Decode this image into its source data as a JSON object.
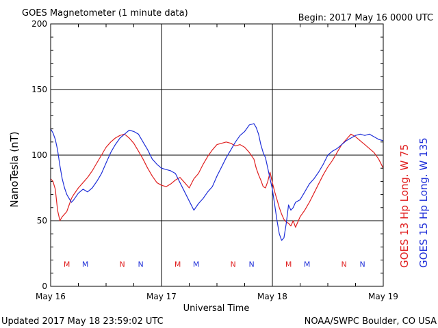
{
  "header": {
    "title": "GOES Magnetometer (1 minute data)",
    "begin": "Begin:  2017 May 16 0000 UTC"
  },
  "footer": {
    "updated": "Updated 2017 May 18 23:59:02 UTC",
    "credit": "NOAA/SWPC Boulder, CO USA"
  },
  "colors": {
    "goes13": "#e02020",
    "goes15": "#1f2fd8",
    "grid": "#000000"
  },
  "chart_data": {
    "type": "line",
    "title": "GOES Magnetometer (1 minute data)",
    "xlabel": "Universal Time",
    "ylabel": "NanoTesla (nT)",
    "xlim": [
      0,
      72
    ],
    "ylim": [
      0,
      200
    ],
    "x_unit": "hours since 2017 May 16 0000 UTC",
    "x_ticks": [
      {
        "x": 0,
        "label": "May 16"
      },
      {
        "x": 24,
        "label": "May 17"
      },
      {
        "x": 48,
        "label": "May 18"
      },
      {
        "x": 72,
        "label": "May 19"
      }
    ],
    "y_ticks": [
      0,
      50,
      100,
      150,
      200
    ],
    "grid": true,
    "legend_placement": "right (vertical text)",
    "series": [
      {
        "name": "GOES 13 Hp  Long. W 75",
        "color": "#e02020",
        "x": [
          0,
          0.5,
          1,
          1.5,
          2,
          2.5,
          3,
          3.5,
          4,
          4.5,
          5,
          6,
          7,
          8,
          9,
          10,
          11,
          12,
          13,
          14,
          15,
          16,
          17,
          18,
          19,
          20,
          21,
          22,
          23,
          24,
          25,
          26,
          27,
          28,
          29,
          30,
          31,
          32,
          33,
          34,
          35,
          36,
          37,
          38,
          39,
          40,
          41,
          42,
          43,
          44,
          44.5,
          45,
          45.5,
          46,
          46.5,
          47,
          47.5,
          48,
          48.5,
          49,
          49.5,
          50,
          50.5,
          51,
          51.5,
          52,
          52.5,
          53,
          54,
          55,
          56,
          57,
          58,
          59,
          60,
          61,
          62,
          63,
          64,
          65,
          66,
          67,
          68,
          69,
          70,
          71,
          72
        ],
        "values": [
          82,
          80,
          74,
          58,
          50,
          53,
          55,
          57,
          62,
          67,
          70,
          75,
          79,
          83,
          88,
          94,
          100,
          106,
          110,
          113,
          115,
          116,
          113,
          109,
          103,
          97,
          90,
          84,
          79,
          77,
          76,
          78,
          81,
          83,
          79,
          75,
          82,
          86,
          93,
          99,
          104,
          108,
          109,
          110,
          109,
          107,
          108,
          106,
          102,
          97,
          90,
          85,
          81,
          76,
          75,
          80,
          87,
          79,
          72,
          66,
          60,
          55,
          51,
          49,
          48,
          46,
          50,
          45,
          53,
          58,
          64,
          71,
          78,
          85,
          91,
          96,
          102,
          108,
          112,
          116,
          114,
          111,
          108,
          105,
          102,
          97,
          90
        ]
      },
      {
        "name": "GOES 15 Hp  Long. W 135",
        "color": "#1f2fd8",
        "x": [
          0,
          0.5,
          1,
          1.5,
          2,
          2.5,
          3,
          3.5,
          4,
          4.5,
          5,
          6,
          7,
          8,
          9,
          10,
          11,
          12,
          13,
          14,
          15,
          16,
          17,
          18,
          19,
          20,
          21,
          22,
          23,
          24,
          25,
          26,
          27,
          28,
          29,
          30,
          31,
          32,
          33,
          34,
          35,
          36,
          37,
          38,
          39,
          40,
          41,
          42,
          43,
          44,
          44.5,
          45,
          45.5,
          46,
          46.5,
          47,
          47.5,
          48,
          48.5,
          49,
          49.5,
          50,
          50.5,
          51,
          51.5,
          52,
          52.5,
          53,
          54,
          55,
          56,
          57,
          58,
          59,
          60,
          61,
          62,
          63,
          64,
          65,
          66,
          67,
          68,
          69,
          70,
          71,
          72
        ],
        "values": [
          120,
          117,
          112,
          104,
          92,
          82,
          75,
          70,
          67,
          64,
          66,
          71,
          74,
          72,
          75,
          80,
          86,
          94,
          102,
          108,
          113,
          116,
          119,
          118,
          116,
          110,
          104,
          97,
          93,
          90,
          89,
          88,
          86,
          79,
          72,
          65,
          58,
          63,
          67,
          72,
          76,
          84,
          91,
          98,
          104,
          110,
          115,
          118,
          123,
          124,
          121,
          116,
          108,
          102,
          98,
          90,
          82,
          74,
          62,
          50,
          40,
          35,
          37,
          48,
          62,
          58,
          60,
          64,
          66,
          72,
          78,
          82,
          87,
          93,
          100,
          103,
          105,
          108,
          111,
          113,
          115,
          116,
          115,
          116,
          114,
          112,
          111
        ]
      }
    ],
    "annotations": [
      {
        "x": 3.5,
        "label": "M",
        "color": "#e02020"
      },
      {
        "x": 7.5,
        "label": "M",
        "color": "#1f2fd8"
      },
      {
        "x": 15.5,
        "label": "N",
        "color": "#e02020"
      },
      {
        "x": 19.5,
        "label": "N",
        "color": "#1f2fd8"
      },
      {
        "x": 27.5,
        "label": "M",
        "color": "#e02020"
      },
      {
        "x": 31.5,
        "label": "M",
        "color": "#1f2fd8"
      },
      {
        "x": 39.5,
        "label": "N",
        "color": "#e02020"
      },
      {
        "x": 43.5,
        "label": "N",
        "color": "#1f2fd8"
      },
      {
        "x": 51.5,
        "label": "M",
        "color": "#e02020"
      },
      {
        "x": 55.5,
        "label": "M",
        "color": "#1f2fd8"
      },
      {
        "x": 63.5,
        "label": "N",
        "color": "#e02020"
      },
      {
        "x": 67.5,
        "label": "N",
        "color": "#1f2fd8"
      }
    ],
    "annotation_y": 17
  }
}
